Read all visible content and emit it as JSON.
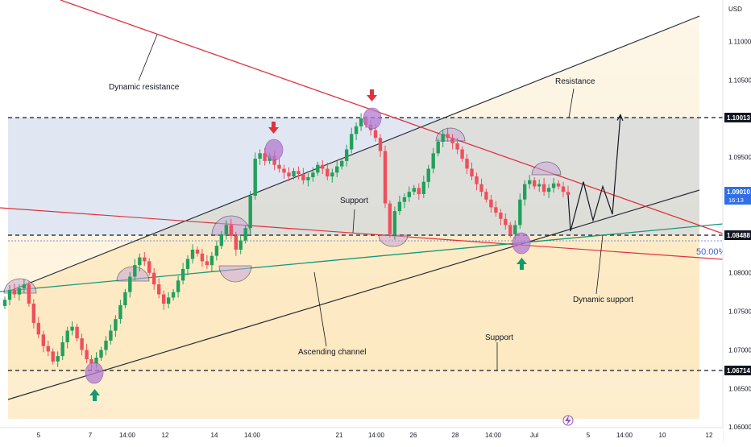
{
  "chart_data": {
    "type": "candlestick",
    "currency": "USD",
    "yaxis_ticks": [
      "1.11000",
      "1.10500",
      "1.09500",
      "1.08000",
      "1.07500",
      "1.07000",
      "1.06500",
      "1.06000"
    ],
    "xaxis_ticks": [
      "5",
      "7",
      "14:00",
      "12",
      "14",
      "14:00",
      "21",
      "14:00",
      "26",
      "28",
      "14:00",
      "Jul",
      "5",
      "14:00",
      "10",
      "12"
    ],
    "price_tags": {
      "resistance_level": "1.10013",
      "current_price": "1.09010",
      "countdown": "16:13",
      "support_level": "1.08488",
      "lower_support_level": "1.06714"
    },
    "fib_label": "50.00%",
    "annotations": {
      "dynamic_resistance": "Dynamic resistance",
      "resistance": "Resistance",
      "support_mid": "Support",
      "ascending_channel": "Ascending channel",
      "support_low": "Support",
      "dynamic_support": "Dynamic support"
    },
    "levels": {
      "resistance": 1.10013,
      "support": 1.08488,
      "lower_support": 1.06714,
      "fib_50": 1.0841
    },
    "y_range": [
      1.06,
      1.114
    ],
    "closes": [
      1.0765,
      1.0778,
      1.0772,
      1.078,
      1.0785,
      1.076,
      1.0735,
      1.072,
      1.0705,
      1.0698,
      1.0685,
      1.0692,
      1.071,
      1.0725,
      1.073,
      1.0715,
      1.07,
      1.0688,
      1.0682,
      1.069,
      1.07,
      1.0712,
      1.0725,
      1.074,
      1.0758,
      1.0775,
      1.0795,
      1.081,
      1.082,
      1.0815,
      1.08,
      1.0785,
      1.0772,
      1.076,
      1.0768,
      1.0775,
      1.079,
      1.0805,
      1.0818,
      1.083,
      1.0825,
      1.0815,
      1.081,
      1.0822,
      1.0835,
      1.085,
      1.0862,
      1.0848,
      1.083,
      1.0842,
      1.0858,
      1.09,
      1.0948,
      1.0955,
      1.0945,
      1.0952,
      1.094,
      1.0935,
      1.093,
      1.0925,
      1.0932,
      1.0928,
      1.092,
      1.0924,
      1.093,
      1.094,
      1.0935,
      1.0925,
      1.093,
      1.0938,
      1.0945,
      1.096,
      1.098,
      1.099,
      1.1,
      1.0992,
      1.0985,
      1.0975,
      1.0958,
      1.089,
      1.085,
      1.088,
      1.0892,
      1.0898,
      1.0905,
      1.091,
      1.0902,
      1.0918,
      1.0935,
      1.0955,
      1.097,
      1.098,
      1.0975,
      1.0968,
      1.096,
      1.0948,
      1.0935,
      1.0925,
      1.0915,
      1.0905,
      1.0895,
      1.0885,
      1.0878,
      1.087,
      1.0862,
      1.085,
      1.0862,
      1.0895,
      1.0915,
      1.092,
      1.0912,
      1.0915,
      1.0905,
      1.091,
      1.0916,
      1.0912,
      1.0905,
      1.0901
    ],
    "projection": [
      [
        1.0901,
        1.0854
      ],
      [
        1.0854,
        1.0918
      ],
      [
        1.0918,
        1.0868
      ],
      [
        1.0868,
        1.0912
      ],
      [
        1.0912,
        1.0876
      ],
      [
        1.0876,
        1.1005
      ]
    ]
  }
}
